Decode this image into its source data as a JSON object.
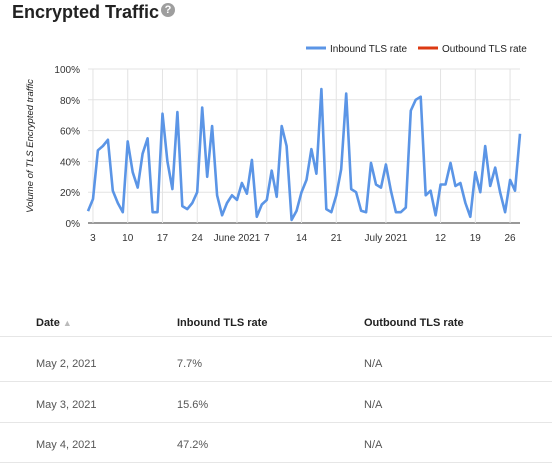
{
  "page": {
    "title": "Encrypted Traffic",
    "help_icon": "?"
  },
  "chart_data": {
    "type": "line",
    "ylabel": "Volume of TLS Encrypted traffic",
    "ylim": [
      0,
      100
    ],
    "yticks": [
      "0%",
      "20%",
      "40%",
      "60%",
      "80%",
      "100%"
    ],
    "xtick_labels": [
      "3",
      "10",
      "17",
      "24",
      "June 2021",
      "7",
      "14",
      "21",
      "July 2021",
      "12",
      "19",
      "26"
    ],
    "xtick_days": [
      1,
      8,
      15,
      22,
      30,
      36,
      43,
      50,
      60,
      71,
      78,
      85
    ],
    "grid": true,
    "legend_position": "top-right",
    "series": [
      {
        "name": "Inbound TLS rate",
        "color": "#5b95e6",
        "values": [
          7.7,
          15.6,
          47.2,
          50,
          54,
          21,
          13,
          7,
          53,
          33,
          23,
          45,
          55,
          7,
          7,
          71,
          40,
          22,
          72,
          11,
          9,
          13,
          20,
          75,
          30,
          63,
          18,
          5,
          13,
          18,
          15,
          26,
          19,
          41,
          4,
          12,
          15,
          34,
          17,
          63,
          50,
          2,
          8,
          20,
          28,
          48,
          32,
          87,
          9,
          7,
          18,
          35,
          84,
          22,
          20,
          8,
          7,
          39,
          25,
          23,
          38,
          21,
          7,
          7,
          10,
          73,
          80,
          82,
          18,
          21,
          5,
          25,
          25,
          39,
          24,
          26,
          13,
          4,
          33,
          20,
          50,
          24,
          36,
          20,
          7,
          28,
          21,
          58
        ]
      },
      {
        "name": "Outbound TLS rate",
        "color": "#dc3912",
        "values": []
      }
    ]
  },
  "table": {
    "headers": {
      "date": "Date",
      "sort_icon": "▲",
      "inbound": "Inbound TLS rate",
      "outbound": "Outbound TLS rate"
    },
    "rows": [
      {
        "date": "May 2, 2021",
        "inbound": "7.7%",
        "outbound": "N/A"
      },
      {
        "date": "May 3, 2021",
        "inbound": "15.6%",
        "outbound": "N/A"
      },
      {
        "date": "May 4, 2021",
        "inbound": "47.2%",
        "outbound": "N/A"
      }
    ]
  }
}
